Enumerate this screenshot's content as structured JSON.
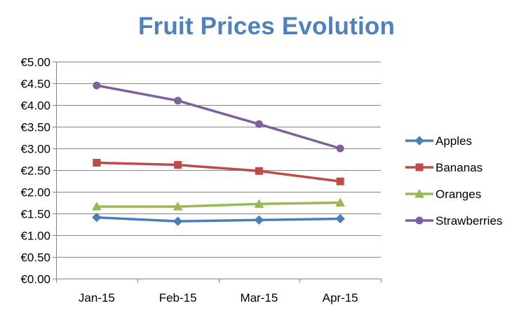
{
  "chart_data": {
    "type": "line",
    "title": "Fruit Prices Evolution",
    "xlabel": "",
    "ylabel": "",
    "categories": [
      "Jan-15",
      "Feb-15",
      "Mar-15",
      "Apr-15"
    ],
    "ylim": [
      0,
      5
    ],
    "ytick_values": [
      0,
      0.5,
      1,
      1.5,
      2,
      2.5,
      3,
      3.5,
      4,
      4.5,
      5
    ],
    "ytick_labels": [
      "€0.00",
      "€0.50",
      "€1.00",
      "€1.50",
      "€2.00",
      "€2.50",
      "€3.00",
      "€3.50",
      "€4.00",
      "€4.50",
      "€5.00"
    ],
    "grid": true,
    "legend_position": "right",
    "series": [
      {
        "name": "Apples",
        "color": "#4A7EBB",
        "marker": "diamond",
        "values": [
          1.41,
          1.32,
          1.35,
          1.38
        ]
      },
      {
        "name": "Bananas",
        "color": "#BE4B48",
        "marker": "square",
        "values": [
          2.67,
          2.62,
          2.48,
          2.24
        ]
      },
      {
        "name": "Oranges",
        "color": "#98B954",
        "marker": "triangle",
        "values": [
          1.66,
          1.66,
          1.72,
          1.75
        ]
      },
      {
        "name": "Strawberries",
        "color": "#7D60A0",
        "marker": "circle",
        "values": [
          4.45,
          4.1,
          3.56,
          3.0
        ]
      }
    ]
  }
}
